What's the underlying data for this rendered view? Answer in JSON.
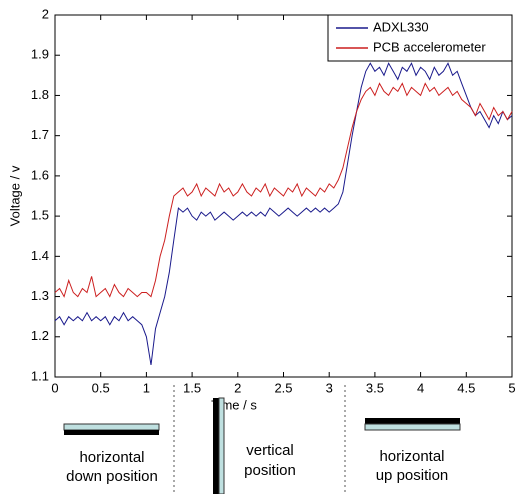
{
  "chart_data": {
    "type": "line",
    "xlabel": "Time / s",
    "ylabel": "Voltage / v",
    "x": [
      0,
      0.05,
      0.1,
      0.15,
      0.2,
      0.25,
      0.3,
      0.35,
      0.4,
      0.45,
      0.5,
      0.55,
      0.6,
      0.65,
      0.7,
      0.75,
      0.8,
      0.85,
      0.9,
      0.95,
      1,
      1.05,
      1.1,
      1.15,
      1.2,
      1.25,
      1.3,
      1.35,
      1.4,
      1.45,
      1.5,
      1.55,
      1.6,
      1.65,
      1.7,
      1.75,
      1.8,
      1.85,
      1.9,
      1.95,
      2,
      2.05,
      2.1,
      2.15,
      2.2,
      2.25,
      2.3,
      2.35,
      2.4,
      2.45,
      2.5,
      2.55,
      2.6,
      2.65,
      2.7,
      2.75,
      2.8,
      2.85,
      2.9,
      2.95,
      3,
      3.05,
      3.1,
      3.15,
      3.2,
      3.25,
      3.3,
      3.35,
      3.4,
      3.45,
      3.5,
      3.55,
      3.6,
      3.65,
      3.7,
      3.75,
      3.8,
      3.85,
      3.9,
      3.95,
      4,
      4.05,
      4.1,
      4.15,
      4.2,
      4.25,
      4.3,
      4.35,
      4.4,
      4.45,
      4.5,
      4.55,
      4.6,
      4.65,
      4.7,
      4.75,
      4.8,
      4.85,
      4.9,
      4.95,
      5
    ],
    "series": [
      {
        "name": "ADXL330",
        "color": "#1a1a8c",
        "values": [
          1.24,
          1.25,
          1.23,
          1.25,
          1.24,
          1.25,
          1.24,
          1.26,
          1.24,
          1.25,
          1.24,
          1.25,
          1.23,
          1.25,
          1.24,
          1.26,
          1.24,
          1.25,
          1.24,
          1.23,
          1.2,
          1.13,
          1.22,
          1.26,
          1.3,
          1.36,
          1.44,
          1.52,
          1.51,
          1.52,
          1.5,
          1.49,
          1.51,
          1.5,
          1.51,
          1.49,
          1.5,
          1.51,
          1.5,
          1.49,
          1.5,
          1.51,
          1.5,
          1.51,
          1.5,
          1.51,
          1.5,
          1.52,
          1.51,
          1.5,
          1.51,
          1.52,
          1.51,
          1.5,
          1.51,
          1.52,
          1.51,
          1.52,
          1.51,
          1.52,
          1.51,
          1.52,
          1.53,
          1.56,
          1.63,
          1.7,
          1.76,
          1.82,
          1.86,
          1.88,
          1.86,
          1.87,
          1.85,
          1.88,
          1.86,
          1.84,
          1.87,
          1.86,
          1.88,
          1.85,
          1.87,
          1.86,
          1.84,
          1.87,
          1.85,
          1.86,
          1.88,
          1.85,
          1.86,
          1.83,
          1.8,
          1.77,
          1.75,
          1.76,
          1.74,
          1.72,
          1.75,
          1.73,
          1.76,
          1.74,
          1.75
        ]
      },
      {
        "name": "PCB accelerometer",
        "color": "#cc1f1f",
        "values": [
          1.31,
          1.32,
          1.3,
          1.34,
          1.31,
          1.3,
          1.32,
          1.31,
          1.35,
          1.3,
          1.31,
          1.32,
          1.3,
          1.33,
          1.31,
          1.3,
          1.32,
          1.31,
          1.3,
          1.31,
          1.31,
          1.3,
          1.34,
          1.4,
          1.44,
          1.5,
          1.55,
          1.56,
          1.57,
          1.55,
          1.56,
          1.58,
          1.55,
          1.57,
          1.56,
          1.55,
          1.58,
          1.56,
          1.57,
          1.55,
          1.56,
          1.58,
          1.56,
          1.55,
          1.57,
          1.56,
          1.58,
          1.55,
          1.57,
          1.56,
          1.55,
          1.57,
          1.56,
          1.58,
          1.55,
          1.57,
          1.56,
          1.55,
          1.57,
          1.56,
          1.58,
          1.57,
          1.59,
          1.62,
          1.67,
          1.72,
          1.76,
          1.79,
          1.81,
          1.82,
          1.8,
          1.83,
          1.81,
          1.8,
          1.82,
          1.81,
          1.83,
          1.8,
          1.82,
          1.81,
          1.8,
          1.83,
          1.81,
          1.82,
          1.8,
          1.81,
          1.82,
          1.8,
          1.81,
          1.79,
          1.78,
          1.77,
          1.75,
          1.78,
          1.76,
          1.74,
          1.77,
          1.75,
          1.76,
          1.74,
          1.76
        ]
      }
    ],
    "xlim": [
      0,
      5
    ],
    "xticks": [
      0,
      0.5,
      1,
      1.5,
      2,
      2.5,
      3,
      3.5,
      4,
      4.5,
      5
    ],
    "ylim": [
      1.1,
      2
    ],
    "yticks": [
      1.1,
      1.2,
      1.3,
      1.4,
      1.5,
      1.6,
      1.7,
      1.8,
      1.9,
      2
    ],
    "legend": "upper right",
    "annotations": [
      [
        "horizontal",
        "down position"
      ],
      [
        "vertical",
        "position"
      ],
      [
        "horizontal",
        "up position"
      ]
    ]
  }
}
